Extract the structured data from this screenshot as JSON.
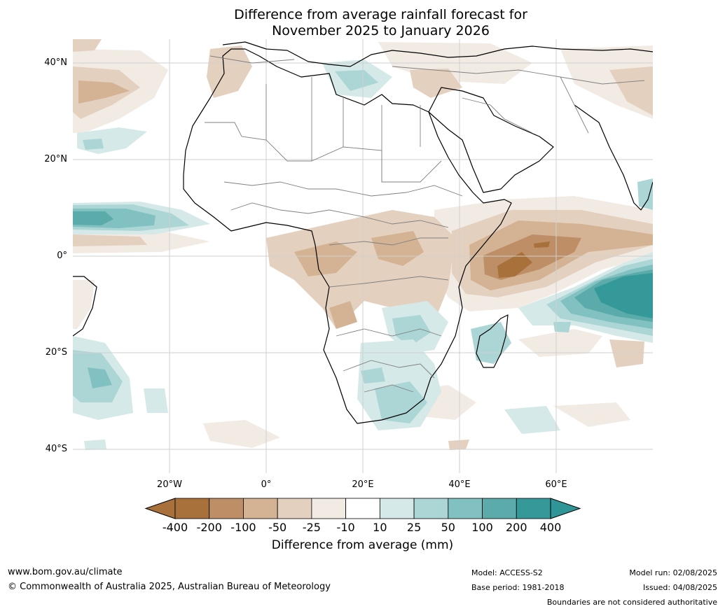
{
  "header": {
    "title_line1": "Difference from average rainfall forecast for",
    "title_line2": "November 2025 to January 2026"
  },
  "map": {
    "lat_labels": [
      "40°N",
      "20°N",
      "0°",
      "20°S",
      "40°S"
    ],
    "lon_labels": [
      "20°W",
      "0°",
      "20°E",
      "40°E",
      "60°E"
    ],
    "colors": {
      "ocean": "#ffffff",
      "grid": "#cfcfcf",
      "coast": "#000000",
      "border": "#808080"
    }
  },
  "colorbar": {
    "title": "Difference from average (mm)",
    "tick_labels": [
      "-400",
      "-200",
      "-100",
      "-50",
      "-25",
      "-10",
      "10",
      "25",
      "50",
      "100",
      "200",
      "400"
    ],
    "colors": [
      "#a8703a",
      "#be8f66",
      "#d3b393",
      "#e4d0bf",
      "#f2ebe4",
      "#ffffff",
      "#d4e9e8",
      "#acd6d6",
      "#82c1c1",
      "#5aabaa",
      "#35999a"
    ],
    "extend_colors": {
      "low": "#a8703a",
      "high": "#2f9596"
    }
  },
  "footer": {
    "url": "www.bom.gov.au/climate",
    "copyright": "© Commonwealth of Australia 2025, Australian Bureau of Meteorology",
    "model": "Model: ACCESS-S2",
    "base_period": "Base period: 1981-2018",
    "model_run": "Model run: 02/08/2025",
    "issued": "Issued: 04/08/2025",
    "disclaimer": "Boundaries are not considered authoritative"
  }
}
